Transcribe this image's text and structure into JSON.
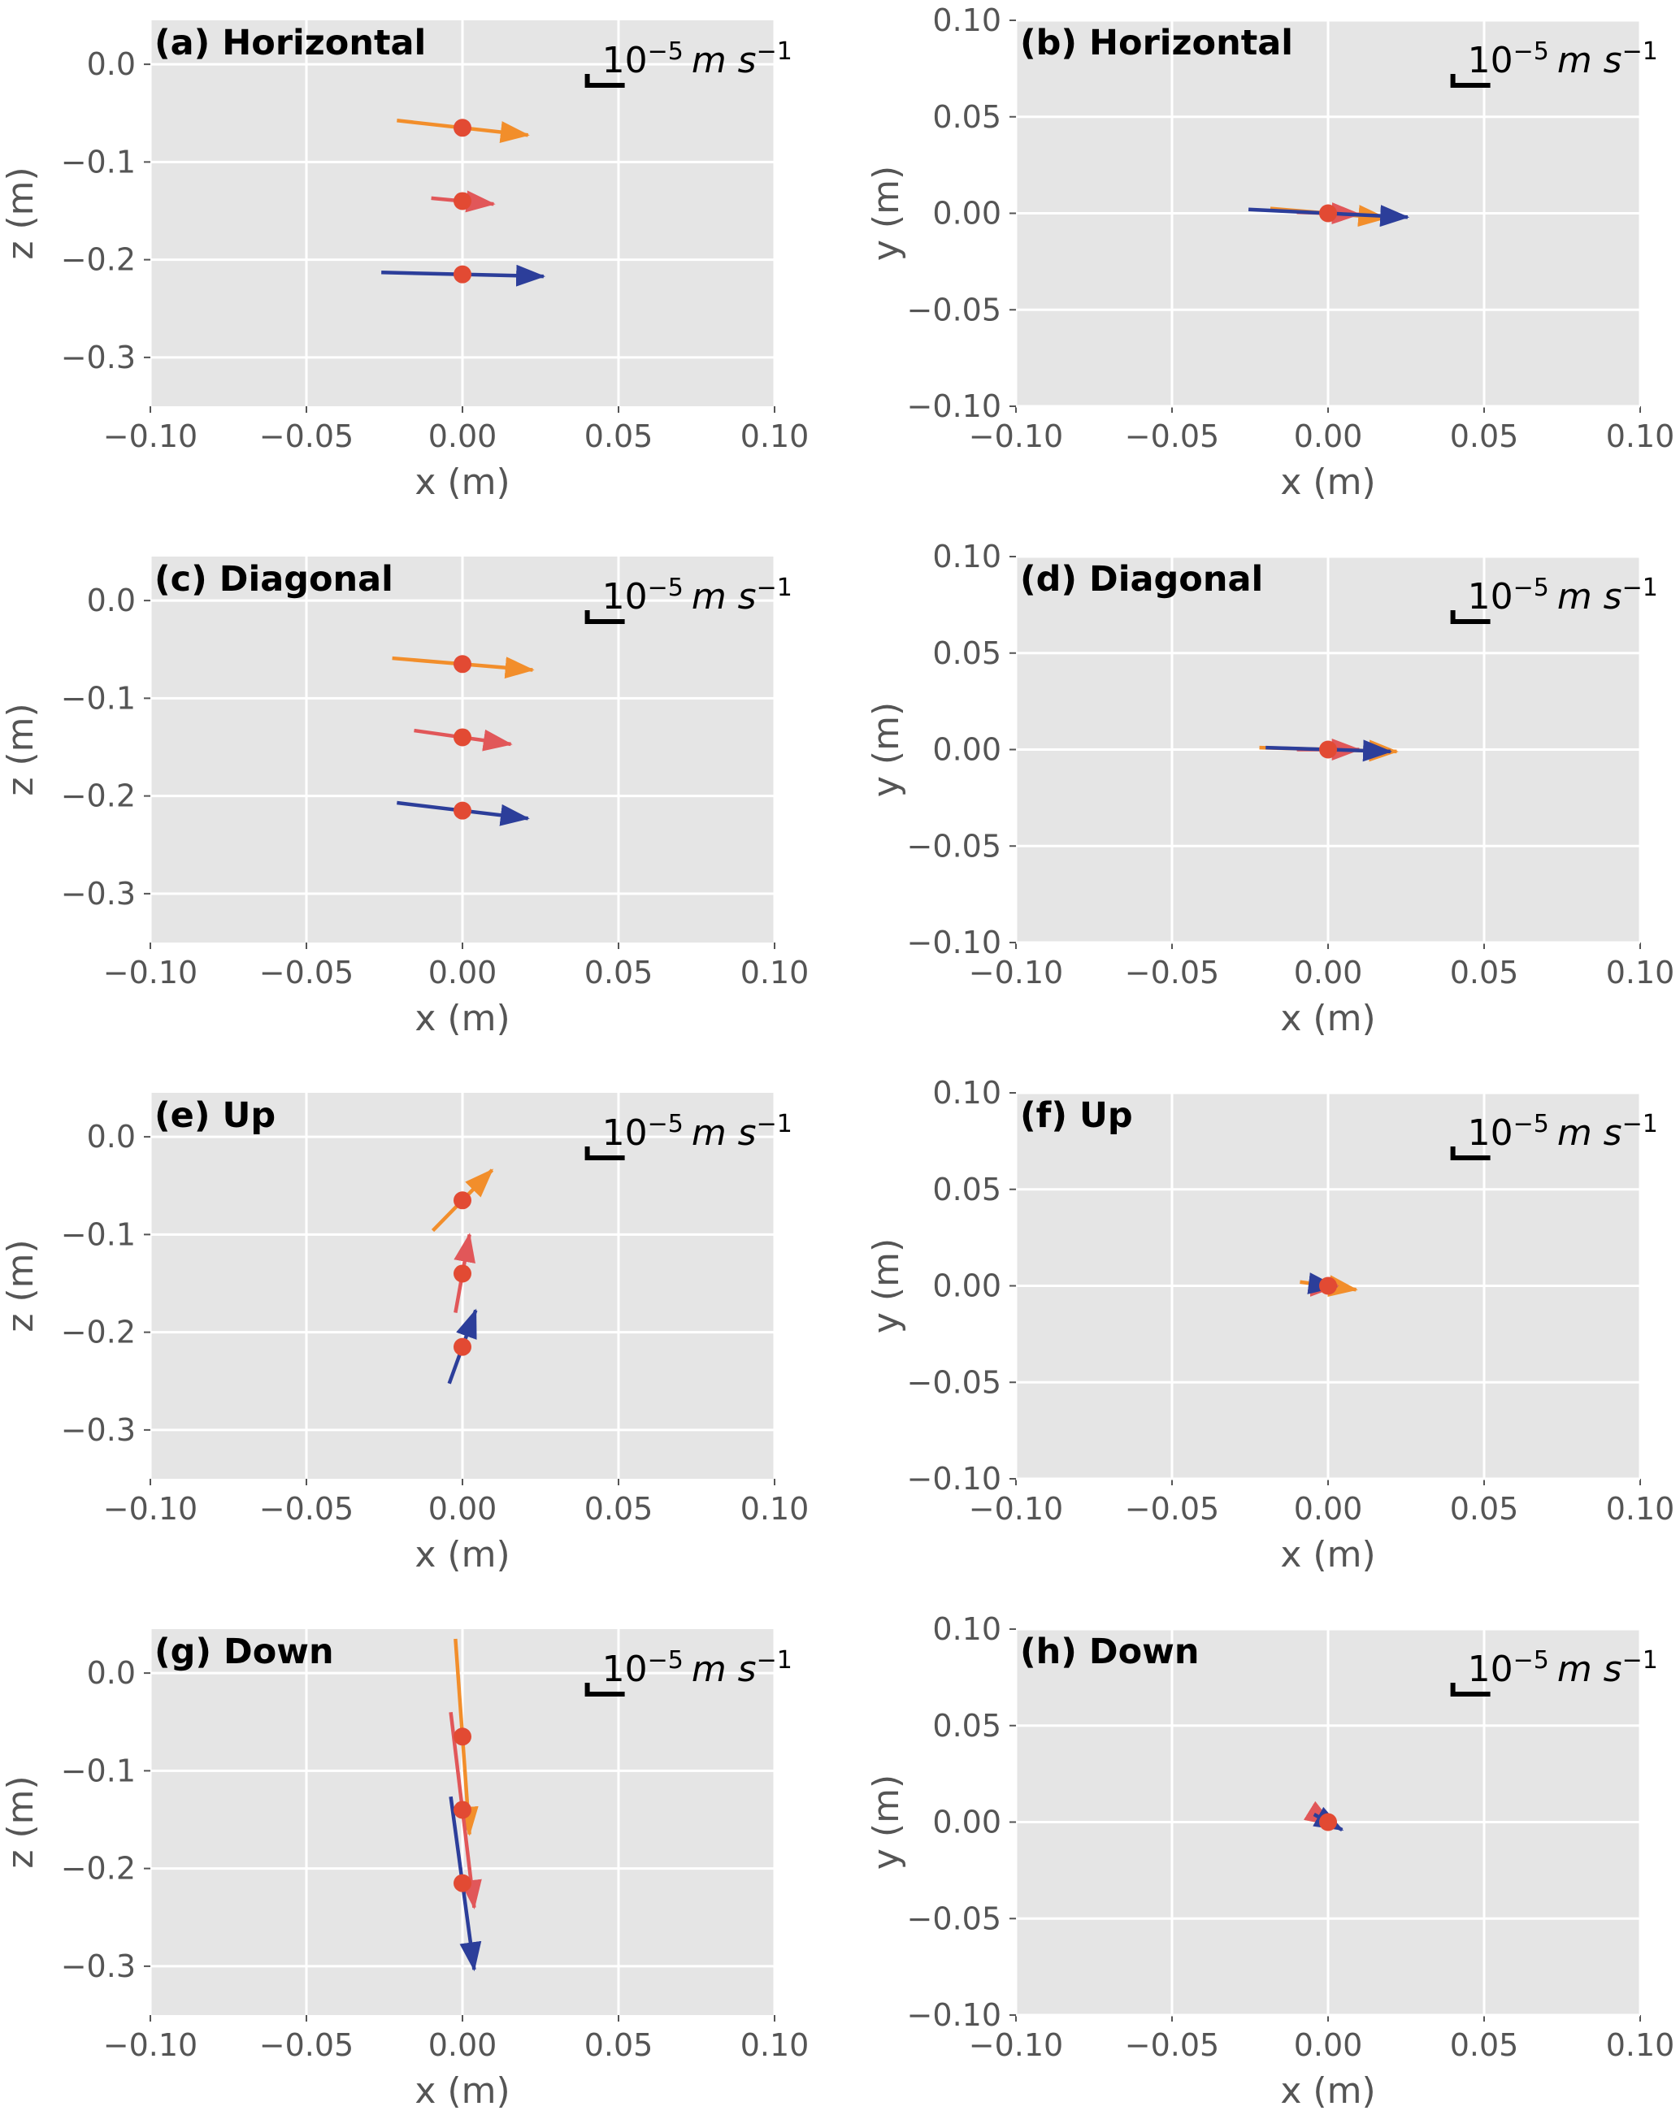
{
  "chart_data": [
    {
      "type": "quiver",
      "title": "(a) Horizontal",
      "xlabel": "x (m)",
      "ylabel": "z (m)",
      "xlim": [
        -0.1,
        0.1
      ],
      "ylim": [
        -0.35,
        0.045
      ],
      "xticks": [
        "−0.10",
        "−0.05",
        "0.00",
        "0.05",
        "0.10"
      ],
      "yticks": [
        "0.0",
        "−0.1",
        "−0.2",
        "−0.3"
      ],
      "ytick_values": [
        0.0,
        -0.1,
        -0.2,
        -0.3
      ],
      "scale_bar": {
        "base": "10",
        "exponent": "−5",
        "unit": "m s",
        "unit_exponent": "−1"
      },
      "grid": true,
      "points": [
        {
          "x": 0.0,
          "y": -0.065,
          "color": "#f28e2b",
          "u": 0.042,
          "v": -0.015
        },
        {
          "x": 0.0,
          "y": -0.14,
          "color": "#e15759",
          "u": 0.02,
          "v": -0.006
        },
        {
          "x": 0.0,
          "y": -0.215,
          "color": "#2c3e9a",
          "u": 0.052,
          "v": -0.004
        }
      ]
    },
    {
      "type": "quiver",
      "title": "(b) Horizontal",
      "xlabel": "x (m)",
      "ylabel": "y (m)",
      "xlim": [
        -0.1,
        0.1
      ],
      "ylim": [
        -0.1,
        0.1
      ],
      "xticks": [
        "−0.10",
        "−0.05",
        "0.00",
        "0.05",
        "0.10"
      ],
      "yticks": [
        "0.10",
        "0.05",
        "0.00",
        "−0.05",
        "−0.10"
      ],
      "ytick_values": [
        0.1,
        0.05,
        0.0,
        -0.05,
        -0.1
      ],
      "scale_bar": {
        "base": "10",
        "exponent": "−5",
        "unit": "m s",
        "unit_exponent": "−1"
      },
      "grid": true,
      "points": [
        {
          "x": 0.0,
          "y": 0.0,
          "color": "#f28e2b",
          "u": 0.037,
          "v": -0.005
        },
        {
          "x": 0.0,
          "y": 0.0,
          "color": "#e15759",
          "u": 0.02,
          "v": -0.001
        },
        {
          "x": 0.0,
          "y": 0.0,
          "color": "#2c3e9a",
          "u": 0.051,
          "v": -0.004
        }
      ]
    },
    {
      "type": "quiver",
      "title": "(c) Diagonal",
      "xlabel": "x (m)",
      "ylabel": "z (m)",
      "xlim": [
        -0.1,
        0.1
      ],
      "ylim": [
        -0.35,
        0.045
      ],
      "xticks": [
        "−0.10",
        "−0.05",
        "0.00",
        "0.05",
        "0.10"
      ],
      "yticks": [
        "0.0",
        "−0.1",
        "−0.2",
        "−0.3"
      ],
      "ytick_values": [
        0.0,
        -0.1,
        -0.2,
        -0.3
      ],
      "scale_bar": {
        "base": "10",
        "exponent": "−5",
        "unit": "m s",
        "unit_exponent": "−1"
      },
      "grid": true,
      "points": [
        {
          "x": 0.0,
          "y": -0.065,
          "color": "#f28e2b",
          "u": 0.045,
          "v": -0.012
        },
        {
          "x": 0.0,
          "y": -0.14,
          "color": "#e15759",
          "u": 0.031,
          "v": -0.014
        },
        {
          "x": 0.0,
          "y": -0.215,
          "color": "#2c3e9a",
          "u": 0.042,
          "v": -0.016
        }
      ]
    },
    {
      "type": "quiver",
      "title": "(d) Diagonal",
      "xlabel": "x (m)",
      "ylabel": "y (m)",
      "xlim": [
        -0.1,
        0.1
      ],
      "ylim": [
        -0.1,
        0.1
      ],
      "xticks": [
        "−0.10",
        "−0.05",
        "0.00",
        "0.05",
        "0.10"
      ],
      "yticks": [
        "0.10",
        "0.05",
        "0.00",
        "−0.05",
        "−0.10"
      ],
      "ytick_values": [
        0.1,
        0.05,
        0.0,
        -0.05,
        -0.1
      ],
      "scale_bar": {
        "base": "10",
        "exponent": "−5",
        "unit": "m s",
        "unit_exponent": "−1"
      },
      "grid": true,
      "points": [
        {
          "x": 0.0,
          "y": 0.0,
          "color": "#f28e2b",
          "u": 0.044,
          "v": -0.002
        },
        {
          "x": 0.0,
          "y": 0.0,
          "color": "#e15759",
          "u": 0.02,
          "v": 0.0
        },
        {
          "x": 0.0,
          "y": 0.0,
          "color": "#2c3e9a",
          "u": 0.04,
          "v": -0.002
        }
      ]
    },
    {
      "type": "quiver",
      "title": "(e) Up",
      "xlabel": "x (m)",
      "ylabel": "z (m)",
      "xlim": [
        -0.1,
        0.1
      ],
      "ylim": [
        -0.35,
        0.045
      ],
      "xticks": [
        "−0.10",
        "−0.05",
        "0.00",
        "0.05",
        "0.10"
      ],
      "yticks": [
        "0.0",
        "−0.1",
        "−0.2",
        "−0.3"
      ],
      "ytick_values": [
        0.0,
        -0.1,
        -0.2,
        -0.3
      ],
      "scale_bar": {
        "base": "10",
        "exponent": "−5",
        "unit": "m s",
        "unit_exponent": "−1"
      },
      "grid": true,
      "points": [
        {
          "x": 0.0,
          "y": -0.065,
          "color": "#f28e2b",
          "u": 0.019,
          "v": 0.062
        },
        {
          "x": 0.0,
          "y": -0.14,
          "color": "#e15759",
          "u": 0.0045,
          "v": 0.08
        },
        {
          "x": 0.0,
          "y": -0.215,
          "color": "#2c3e9a",
          "u": 0.0085,
          "v": 0.075
        }
      ]
    },
    {
      "type": "quiver",
      "title": "(f) Up",
      "xlabel": "x (m)",
      "ylabel": "y (m)",
      "xlim": [
        -0.1,
        0.1
      ],
      "ylim": [
        -0.1,
        0.1
      ],
      "xticks": [
        "−0.10",
        "−0.05",
        "0.00",
        "0.05",
        "0.10"
      ],
      "yticks": [
        "0.10",
        "0.05",
        "0.00",
        "−0.05",
        "−0.10"
      ],
      "ytick_values": [
        0.1,
        0.05,
        0.0,
        -0.05,
        -0.1
      ],
      "scale_bar": {
        "base": "10",
        "exponent": "−5",
        "unit": "m s",
        "unit_exponent": "−1"
      },
      "grid": true,
      "points": [
        {
          "x": 0.0,
          "y": 0.0,
          "color": "#f28e2b",
          "u": 0.018,
          "v": -0.004
        },
        {
          "x": 0.0,
          "y": 0.0,
          "color": "#e15759",
          "u": 0.006,
          "v": 0.0
        },
        {
          "x": 0.0,
          "y": 0.0,
          "color": "#2c3e9a",
          "u": 0.005,
          "v": -0.001
        }
      ]
    },
    {
      "type": "quiver",
      "title": "(g) Down",
      "xlabel": "x (m)",
      "ylabel": "z (m)",
      "xlim": [
        -0.1,
        0.1
      ],
      "ylim": [
        -0.35,
        0.045
      ],
      "xticks": [
        "−0.10",
        "−0.05",
        "0.00",
        "0.05",
        "0.10"
      ],
      "yticks": [
        "0.0",
        "−0.1",
        "−0.2",
        "−0.3"
      ],
      "ytick_values": [
        0.0,
        -0.1,
        -0.2,
        -0.3
      ],
      "scale_bar": {
        "base": "10",
        "exponent": "−5",
        "unit": "m s",
        "unit_exponent": "−1"
      },
      "grid": true,
      "points": [
        {
          "x": 0.0,
          "y": -0.065,
          "color": "#f28e2b",
          "u": 0.0045,
          "v": -0.2
        },
        {
          "x": 0.0,
          "y": -0.14,
          "color": "#e15759",
          "u": 0.0075,
          "v": -0.2
        },
        {
          "x": 0.0,
          "y": -0.215,
          "color": "#2c3e9a",
          "u": 0.0075,
          "v": -0.177
        }
      ]
    },
    {
      "type": "quiver",
      "title": "(h) Down",
      "xlabel": "x (m)",
      "ylabel": "y (m)",
      "xlim": [
        -0.1,
        0.1
      ],
      "ylim": [
        -0.1,
        0.1
      ],
      "xticks": [
        "−0.10",
        "−0.05",
        "0.00",
        "0.05",
        "0.10"
      ],
      "yticks": [
        "0.10",
        "0.05",
        "0.00",
        "−0.05",
        "−0.10"
      ],
      "ytick_values": [
        0.1,
        0.05,
        0.0,
        -0.05,
        -0.1
      ],
      "scale_bar": {
        "base": "10",
        "exponent": "−5",
        "unit": "m s",
        "unit_exponent": "−1"
      },
      "grid": true,
      "points": [
        {
          "x": 0.0,
          "y": 0.0,
          "color": "#f28e2b",
          "u": 0.003,
          "v": -0.003
        },
        {
          "x": 0.0,
          "y": 0.0,
          "color": "#e15759",
          "u": 0.003,
          "v": -0.003
        },
        {
          "x": 0.0,
          "y": 0.0,
          "color": "#2c3e9a",
          "u": 0.009,
          "v": -0.008
        }
      ]
    }
  ],
  "colors": {
    "panel_background": "#e5e5e5",
    "grid": "#ffffff",
    "point": "#e24a33",
    "text": "#555555"
  }
}
